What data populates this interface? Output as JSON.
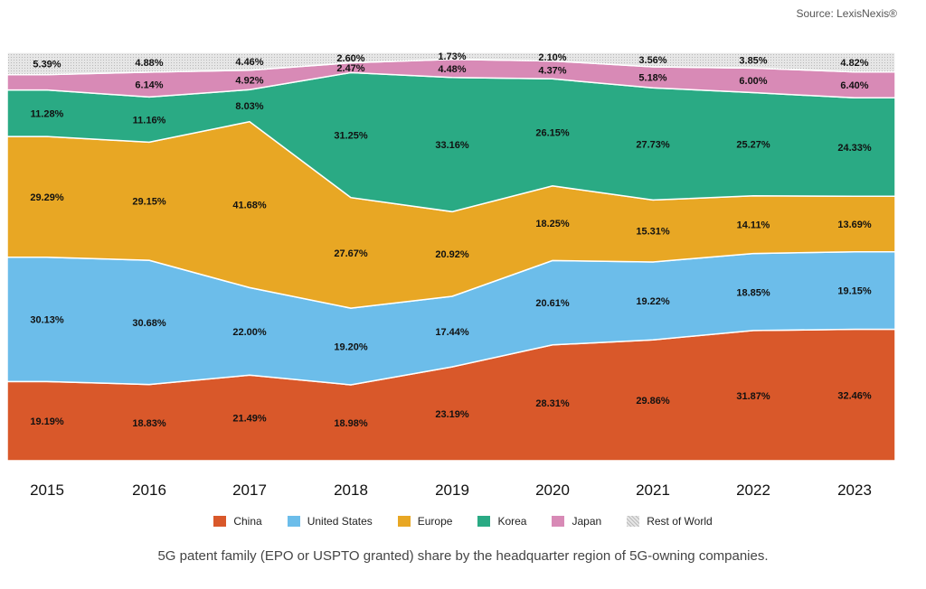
{
  "source": "Source: LexisNexis®",
  "caption": "5G patent family (EPO or USPTO granted) share by the headquarter region of 5G-owning companies.",
  "chart_data": {
    "type": "area",
    "stacked": true,
    "x": [
      "2015",
      "2016",
      "2017",
      "2018",
      "2019",
      "2020",
      "2021",
      "2022",
      "2023"
    ],
    "ylim": [
      0,
      100
    ],
    "legend_position": "bottom",
    "series": [
      {
        "name": "China",
        "color": "#d9582a",
        "values": [
          19.19,
          18.83,
          21.49,
          18.98,
          23.19,
          28.31,
          29.86,
          31.87,
          32.46
        ],
        "labels": [
          "19.19%",
          "18.83%",
          "21.49%",
          "18.98%",
          "23.19%",
          "28.31%",
          "29.86%",
          "31.87%",
          "32.46%"
        ]
      },
      {
        "name": "United States",
        "color": "#6cbdea",
        "values": [
          30.13,
          30.68,
          22.0,
          19.2,
          17.44,
          20.61,
          19.22,
          18.85,
          19.15
        ],
        "labels": [
          "30.13%",
          "30.68%",
          "22.00%",
          "19.20%",
          "17.44%",
          "20.61%",
          "19.22%",
          "18.85%",
          "19.15%"
        ]
      },
      {
        "name": "Europe",
        "color": "#e8a724",
        "values": [
          29.29,
          29.15,
          41.68,
          27.67,
          20.92,
          18.25,
          15.31,
          14.11,
          13.69
        ],
        "labels": [
          "29.29%",
          "29.15%",
          "41.68%",
          "27.67%",
          "20.92%",
          "18.25%",
          "15.31%",
          "14.11%",
          "13.69%"
        ]
      },
      {
        "name": "Korea",
        "color": "#2aaa84",
        "values": [
          11.28,
          11.16,
          8.03,
          31.25,
          33.16,
          26.15,
          27.73,
          25.27,
          24.33
        ],
        "labels": [
          "11.28%",
          "11.16%",
          "8.03%",
          "31.25%",
          "33.16%",
          "26.15%",
          "27.73%",
          "25.27%",
          "24.33%"
        ]
      },
      {
        "name": "Japan",
        "color": "#d88ab6",
        "values": [
          3.72,
          6.14,
          4.92,
          2.47,
          4.48,
          4.37,
          5.18,
          6.0,
          6.4
        ],
        "labels": [
          "",
          "6.14%",
          "4.92%",
          "2.47%",
          "4.48%",
          "4.37%",
          "5.18%",
          "6.00%",
          "6.40%"
        ]
      },
      {
        "name": "Rest of World",
        "color": "#dcdcdc",
        "values": [
          5.39,
          4.88,
          4.46,
          2.6,
          1.73,
          2.1,
          3.56,
          3.85,
          4.82
        ],
        "labels": [
          "5.39%",
          "4.88%",
          "4.46%",
          "2.60%",
          "1.73%",
          "2.10%",
          "3.56%",
          "3.85%",
          "4.82%"
        ]
      }
    ]
  }
}
